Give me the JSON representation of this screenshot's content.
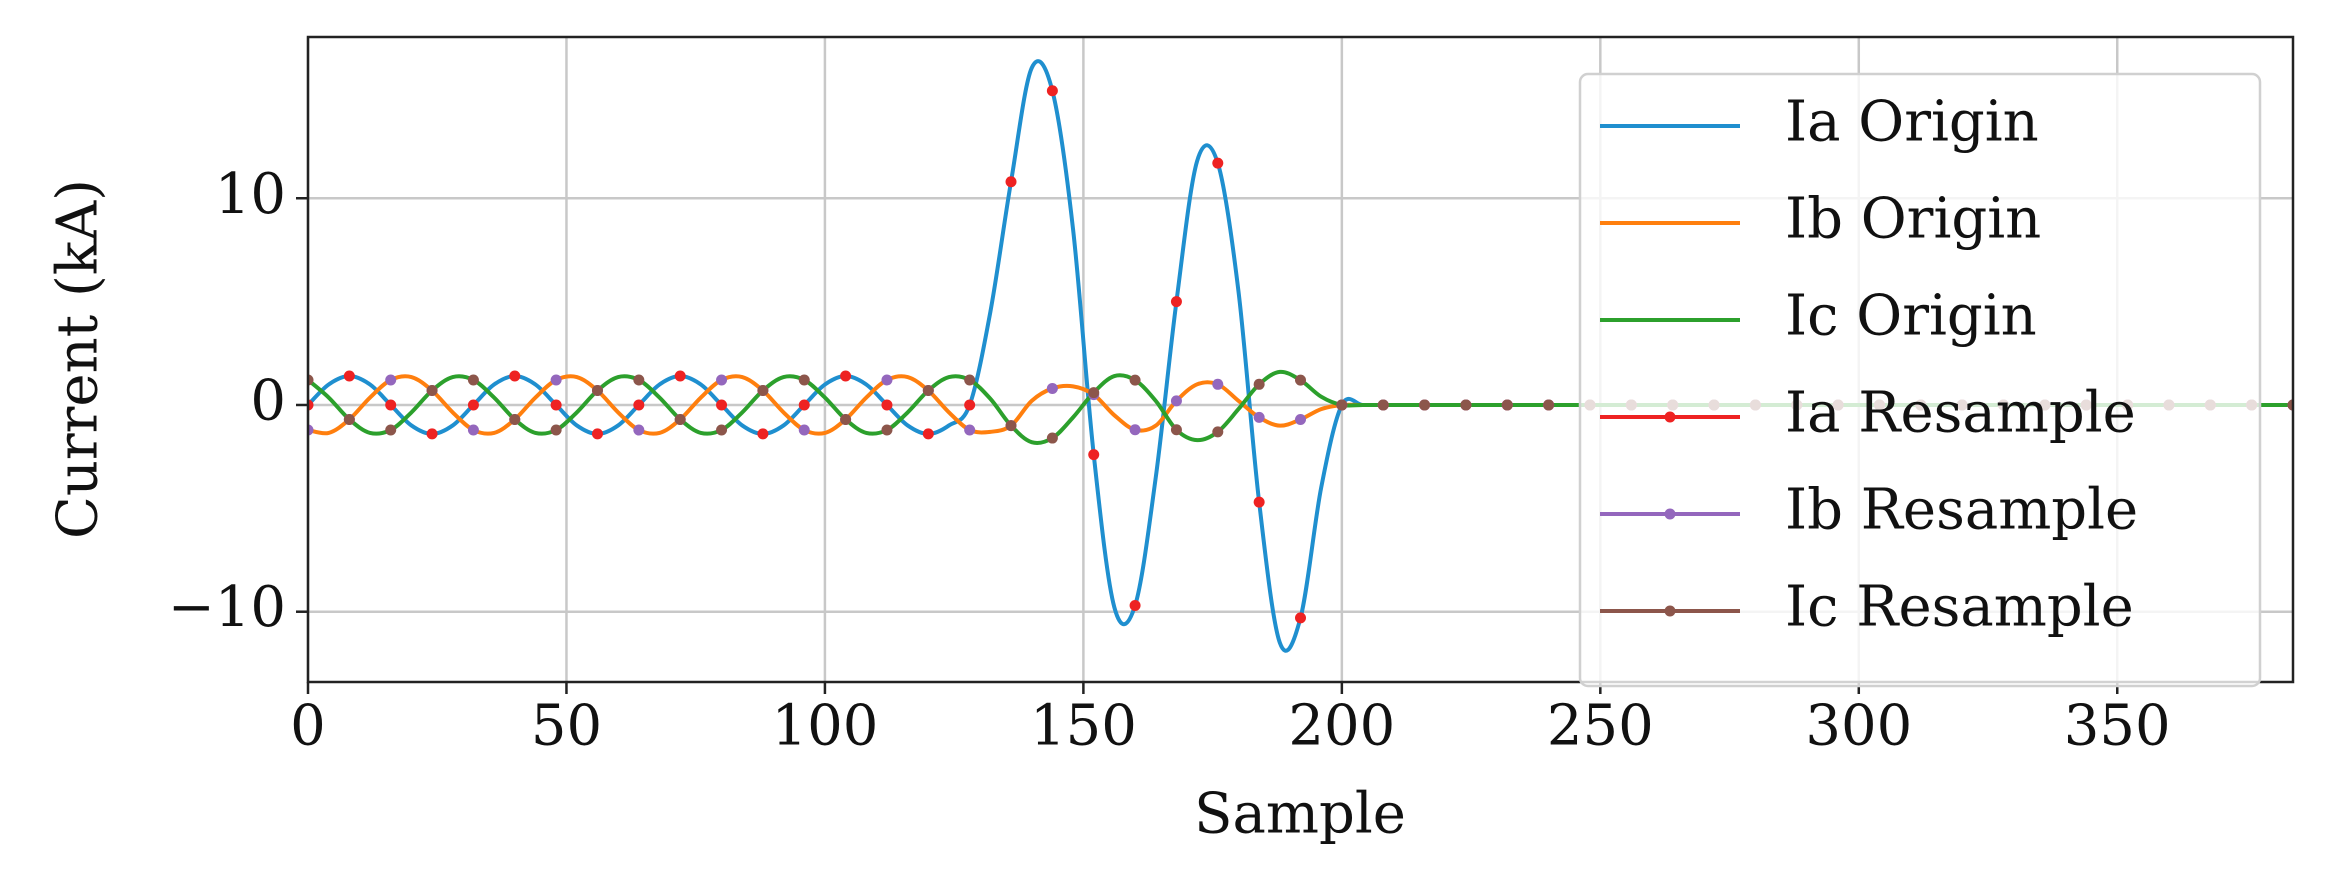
{
  "chart_data": {
    "type": "line",
    "xlabel": "Sample",
    "ylabel": "Current (kA)",
    "xlim": [
      0,
      384
    ],
    "ylim": [
      -13.4,
      17.8
    ],
    "xticks": [
      0,
      50,
      100,
      150,
      200,
      250,
      300,
      350
    ],
    "yticks": [
      {
        "value": -10,
        "label": "−10"
      },
      0,
      10
    ],
    "grid": true,
    "legend": "upper right",
    "series": [
      {
        "name": "Ia Origin",
        "color": "#1f8fcf",
        "style": "line",
        "x": [
          0,
          4,
          8,
          12,
          16,
          20,
          24,
          28,
          32,
          36,
          40,
          44,
          48,
          52,
          56,
          60,
          64,
          68,
          72,
          76,
          80,
          84,
          88,
          92,
          96,
          100,
          104,
          108,
          112,
          116,
          120,
          124,
          128,
          132,
          136,
          140,
          144,
          148,
          152,
          156,
          160,
          164,
          168,
          172,
          176,
          180,
          184,
          188,
          192,
          196,
          200,
          204,
          208,
          212,
          216,
          220,
          224,
          228,
          232,
          236,
          240,
          244,
          248,
          252,
          256,
          260,
          264,
          268,
          272,
          276,
          280,
          284,
          288,
          292,
          296,
          300,
          304,
          308,
          312,
          316,
          320,
          324,
          328,
          332,
          336,
          340,
          344,
          348,
          352,
          356,
          360,
          364,
          368,
          372,
          376,
          380,
          384
        ],
        "values": [
          0,
          0.99,
          1.4,
          0.99,
          0,
          -0.99,
          -1.4,
          -0.99,
          0,
          0.99,
          1.4,
          0.99,
          0,
          -0.99,
          -1.4,
          -0.99,
          0,
          0.99,
          1.4,
          0.99,
          0,
          -0.99,
          -1.4,
          -0.99,
          0,
          0.99,
          1.4,
          0.99,
          0,
          -0.99,
          -1.4,
          -0.99,
          0,
          4.5,
          10.8,
          16.3,
          15.2,
          8.5,
          -2.4,
          -9.8,
          -9.7,
          -3.5,
          5,
          11.8,
          11.7,
          5.5,
          -4.7,
          -11.5,
          -10.3,
          -4,
          0,
          0,
          0,
          0,
          0,
          0,
          0,
          0,
          0,
          0,
          0,
          0,
          0,
          0,
          0,
          0,
          0,
          0,
          0,
          0,
          0,
          0,
          0,
          0,
          0,
          0,
          0,
          0,
          0,
          0,
          0,
          0,
          0,
          0,
          0,
          0,
          0,
          0,
          0,
          0,
          0,
          0,
          0,
          0,
          0,
          0,
          0
        ]
      },
      {
        "name": "Ib Origin",
        "color": "#ff7f0e",
        "style": "line",
        "x": [
          0,
          4,
          8,
          12,
          16,
          20,
          24,
          28,
          32,
          36,
          40,
          44,
          48,
          52,
          56,
          60,
          64,
          68,
          72,
          76,
          80,
          84,
          88,
          92,
          96,
          100,
          104,
          108,
          112,
          116,
          120,
          124,
          128,
          132,
          136,
          140,
          144,
          148,
          152,
          156,
          160,
          164,
          168,
          172,
          176,
          180,
          184,
          188,
          192,
          196,
          200,
          204,
          208,
          212,
          216,
          220,
          224,
          228,
          232,
          236,
          240,
          244,
          248,
          252,
          256,
          260,
          264,
          268,
          272,
          276,
          280,
          284,
          288,
          292,
          296,
          300,
          304,
          308,
          312,
          316,
          320,
          324,
          328,
          332,
          336,
          340,
          344,
          348,
          352,
          356,
          360,
          364,
          368,
          372,
          376,
          380,
          384
        ],
        "values": [
          -1.21,
          -1.35,
          -0.7,
          0.36,
          1.21,
          1.35,
          0.7,
          -0.36,
          -1.21,
          -1.35,
          -0.7,
          0.36,
          1.21,
          1.35,
          0.7,
          -0.36,
          -1.21,
          -1.35,
          -0.7,
          0.36,
          1.21,
          1.35,
          0.7,
          -0.36,
          -1.21,
          -1.35,
          -0.7,
          0.36,
          1.21,
          1.35,
          0.7,
          -0.36,
          -1.21,
          -1.3,
          -1.0,
          0.2,
          0.8,
          0.9,
          0.5,
          -0.5,
          -1.2,
          -1.0,
          0.2,
          1.0,
          1.0,
          0.2,
          -0.6,
          -1.0,
          -0.7,
          -0.2,
          0,
          0,
          0,
          0,
          0,
          0,
          0,
          0,
          0,
          0,
          0,
          0,
          0,
          0,
          0,
          0,
          0,
          0,
          0,
          0,
          0,
          0,
          0,
          0,
          0,
          0,
          0,
          0,
          0,
          0,
          0,
          0,
          0,
          0,
          0,
          0,
          0,
          0,
          0,
          0,
          0,
          0,
          0,
          0,
          0,
          0,
          0
        ]
      },
      {
        "name": "Ic Origin",
        "color": "#2ca02c",
        "style": "line",
        "x": [
          0,
          4,
          8,
          12,
          16,
          20,
          24,
          28,
          32,
          36,
          40,
          44,
          48,
          52,
          56,
          60,
          64,
          68,
          72,
          76,
          80,
          84,
          88,
          92,
          96,
          100,
          104,
          108,
          112,
          116,
          120,
          124,
          128,
          132,
          136,
          140,
          144,
          148,
          152,
          156,
          160,
          164,
          168,
          172,
          176,
          180,
          184,
          188,
          192,
          196,
          200,
          204,
          208,
          212,
          216,
          220,
          224,
          228,
          232,
          236,
          240,
          244,
          248,
          252,
          256,
          260,
          264,
          268,
          272,
          276,
          280,
          284,
          288,
          292,
          296,
          300,
          304,
          308,
          312,
          316,
          320,
          324,
          328,
          332,
          336,
          340,
          344,
          348,
          352,
          356,
          360,
          364,
          368,
          372,
          376,
          380,
          384
        ],
        "values": [
          1.21,
          0.36,
          -0.7,
          -1.35,
          -1.21,
          -0.36,
          0.7,
          1.35,
          1.21,
          0.36,
          -0.7,
          -1.35,
          -1.21,
          -0.36,
          0.7,
          1.35,
          1.21,
          0.36,
          -0.7,
          -1.35,
          -1.21,
          -0.36,
          0.7,
          1.35,
          1.21,
          0.36,
          -0.7,
          -1.35,
          -1.21,
          -0.36,
          0.7,
          1.35,
          1.21,
          0.3,
          -1.0,
          -1.8,
          -1.6,
          -0.6,
          0.6,
          1.4,
          1.2,
          0.2,
          -1.2,
          -1.7,
          -1.3,
          -0.2,
          1.0,
          1.6,
          1.2,
          0.4,
          0,
          0,
          0,
          0,
          0,
          0,
          0,
          0,
          0,
          0,
          0,
          0,
          0,
          0,
          0,
          0,
          0,
          0,
          0,
          0,
          0,
          0,
          0,
          0,
          0,
          0,
          0,
          0,
          0,
          0,
          0,
          0,
          0,
          0,
          0,
          0,
          0,
          0,
          0,
          0,
          0,
          0,
          0,
          0,
          0,
          0,
          0
        ]
      },
      {
        "name": "Ia Resample",
        "color": "#ee2222",
        "style": "markers",
        "x": [
          0,
          8,
          16,
          24,
          32,
          40,
          48,
          56,
          64,
          72,
          80,
          88,
          96,
          104,
          112,
          120,
          128,
          136,
          144,
          152,
          160,
          168,
          176,
          184,
          192,
          200,
          208,
          216,
          224,
          232,
          240,
          248,
          256,
          264,
          272,
          280,
          288,
          296,
          304,
          312,
          320,
          328,
          336,
          344,
          352,
          360,
          368,
          376,
          384
        ],
        "values": [
          0,
          1.4,
          0,
          -1.4,
          0,
          1.4,
          0,
          -1.4,
          0,
          1.4,
          0,
          -1.4,
          0,
          1.4,
          0,
          -1.4,
          0,
          10.8,
          15.2,
          -2.4,
          -9.7,
          5,
          11.7,
          -4.7,
          -10.3,
          0,
          0,
          0,
          0,
          0,
          0,
          0,
          0,
          0,
          0,
          0,
          0,
          0,
          0,
          0,
          0,
          0,
          0,
          0,
          0,
          0,
          0,
          0,
          0
        ]
      },
      {
        "name": "Ib Resample",
        "color": "#9467bd",
        "style": "markers",
        "x": [
          0,
          8,
          16,
          24,
          32,
          40,
          48,
          56,
          64,
          72,
          80,
          88,
          96,
          104,
          112,
          120,
          128,
          136,
          144,
          152,
          160,
          168,
          176,
          184,
          192,
          200,
          208,
          216,
          224,
          232,
          240,
          248,
          256,
          264,
          272,
          280,
          288,
          296,
          304,
          312,
          320,
          328,
          336,
          344,
          352,
          360,
          368,
          376,
          384
        ],
        "values": [
          -1.21,
          -0.7,
          1.21,
          0.7,
          -1.21,
          -0.7,
          1.21,
          0.7,
          -1.21,
          -0.7,
          1.21,
          0.7,
          -1.21,
          -0.7,
          1.21,
          0.7,
          -1.21,
          -1.0,
          0.8,
          0.5,
          -1.2,
          0.2,
          1.0,
          -0.6,
          -0.7,
          0,
          0,
          0,
          0,
          0,
          0,
          0,
          0,
          0,
          0,
          0,
          0,
          0,
          0,
          0,
          0,
          0,
          0,
          0,
          0,
          0,
          0,
          0,
          0
        ]
      },
      {
        "name": "Ic Resample",
        "color": "#8c564b",
        "style": "markers",
        "x": [
          0,
          8,
          16,
          24,
          32,
          40,
          48,
          56,
          64,
          72,
          80,
          88,
          96,
          104,
          112,
          120,
          128,
          136,
          144,
          152,
          160,
          168,
          176,
          184,
          192,
          200,
          208,
          216,
          224,
          232,
          240,
          248,
          256,
          264,
          272,
          280,
          288,
          296,
          304,
          312,
          320,
          328,
          336,
          344,
          352,
          360,
          368,
          376,
          384
        ],
        "values": [
          1.21,
          -0.7,
          -1.21,
          0.7,
          1.21,
          -0.7,
          -1.21,
          0.7,
          1.21,
          -0.7,
          -1.21,
          0.7,
          1.21,
          -0.7,
          -1.21,
          0.7,
          1.21,
          -1.0,
          -1.6,
          0.6,
          1.2,
          -1.2,
          -1.3,
          1.0,
          1.2,
          0,
          0,
          0,
          0,
          0,
          0,
          0,
          0,
          0,
          0,
          0,
          0,
          0,
          0,
          0,
          0,
          0,
          0,
          0,
          0,
          0,
          0,
          0,
          0
        ]
      }
    ]
  }
}
